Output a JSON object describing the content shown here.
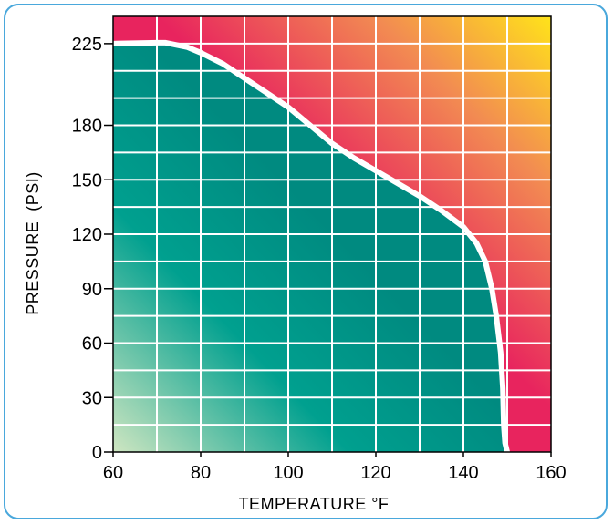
{
  "chart_data": {
    "type": "area",
    "title": "",
    "xlabel": "TEMPERATURE °F",
    "ylabel": "PRESSURE  (PSI)",
    "xlim": [
      60,
      160
    ],
    "ylim": [
      0,
      240
    ],
    "x_ticks": [
      60,
      80,
      100,
      120,
      140,
      160
    ],
    "y_ticks": [
      0,
      30,
      60,
      90,
      120,
      150,
      180,
      225
    ],
    "grid": true,
    "grid_x_step": 10,
    "grid_y_step": 15,
    "series": [
      {
        "points": [
          [
            60,
            225
          ],
          [
            70,
            225.5
          ],
          [
            72,
            225.5
          ],
          [
            77,
            223
          ],
          [
            80,
            220
          ],
          [
            85,
            214
          ],
          [
            90,
            206
          ],
          [
            95,
            198
          ],
          [
            100,
            190
          ],
          [
            105,
            180
          ],
          [
            110,
            170
          ],
          [
            115,
            162
          ],
          [
            120,
            155
          ],
          [
            125,
            148
          ],
          [
            130,
            141
          ],
          [
            135,
            133
          ],
          [
            140,
            124
          ],
          [
            143,
            115
          ],
          [
            145,
            105
          ],
          [
            146.5,
            90
          ],
          [
            147.5,
            75
          ],
          [
            148.5,
            55
          ],
          [
            149,
            35
          ],
          [
            149.2,
            15
          ],
          [
            149.5,
            5
          ],
          [
            150,
            0
          ]
        ]
      }
    ],
    "colors": {
      "safe_dark": "#008a80",
      "safe_mid": "#00a08f",
      "safe_light": "#cfe6c1",
      "danger_red": "#e8245e",
      "danger_orange": "#f28b52",
      "danger_yellow": "#ffe31a",
      "grid": "#ffffff",
      "boundary": "#ffffff",
      "border": "#4aa8dc"
    }
  }
}
